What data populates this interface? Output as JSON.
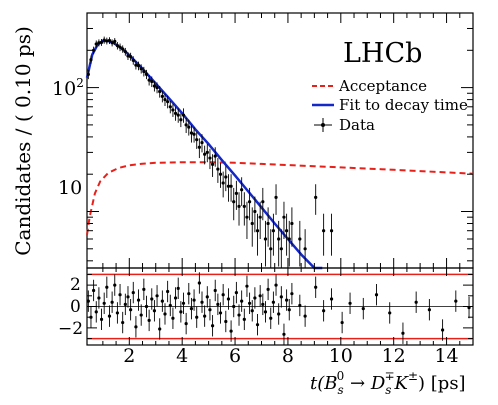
{
  "chart_data": {
    "type": "scatter",
    "experiment_label": "LHCb",
    "ylabel": "Candidates / ( 0.10 ps)",
    "xlabel": "t(B_s^0 → D_s^∓K^±) [ps]",
    "xlabel_parts": {
      "prefix": "t(",
      "B": "B",
      "B_sub": "s",
      "B_sup": "0",
      "arrow": " → ",
      "D": "D",
      "D_sub": "s",
      "D_sup": "∓",
      "K": "K",
      "K_sup": "±",
      "suffix": ") [ps]"
    },
    "xlim": [
      0.4,
      15
    ],
    "ylim_log": [
      3.5,
      400
    ],
    "y_scale": "log",
    "x_ticks": [
      "2",
      "4",
      "6",
      "8",
      "10",
      "12",
      "14"
    ],
    "y_ticks": [
      {
        "label_base": "10",
        "label_exp": "2",
        "value": 100
      },
      {
        "label_base": "10",
        "label_exp": "",
        "value": 10
      }
    ],
    "legend_position": "top-right",
    "legend": [
      {
        "label": "Acceptance",
        "style": "dashed",
        "color": "#e8201a"
      },
      {
        "label": "Fit to decay time",
        "style": "solid",
        "color": "#1428c8"
      },
      {
        "label": "Data",
        "style": "points",
        "color": "#000000"
      }
    ],
    "fit_curve": {
      "color": "#1428c8",
      "x": [
        0.4,
        0.6,
        0.8,
        1.0,
        1.2,
        1.4,
        1.7,
        2.0,
        2.5,
        3.0,
        3.5,
        4.0,
        4.5,
        5.0,
        5.5,
        6.0,
        6.5,
        7.0,
        7.5,
        8.0,
        8.5,
        9.0,
        9.3
      ],
      "y": [
        120,
        185,
        222,
        238,
        238,
        230,
        208,
        183,
        142,
        108,
        82,
        62,
        46,
        35,
        26,
        19.5,
        14.5,
        10.8,
        8.0,
        6.0,
        4.5,
        3.4,
        2.9
      ]
    },
    "acceptance_curve": {
      "color": "#e8201a",
      "x": [
        0.4,
        0.5,
        0.7,
        0.9,
        1.2,
        1.6,
        2.0,
        2.5,
        3.0,
        4.0,
        5.0,
        6.0,
        7.0,
        8.0,
        9.0,
        10.0,
        11.0,
        12.0,
        13.0,
        14.0,
        15.0
      ],
      "y": [
        6.5,
        9,
        14,
        17.5,
        20.5,
        22.5,
        23.6,
        24.3,
        24.7,
        25.0,
        25.0,
        24.7,
        24.2,
        23.7,
        23.2,
        22.7,
        22.2,
        21.7,
        21.2,
        20.7,
        20.2
      ]
    },
    "data_points": {
      "x": [
        0.45,
        0.55,
        0.65,
        0.75,
        0.85,
        0.95,
        1.05,
        1.15,
        1.25,
        1.35,
        1.45,
        1.55,
        1.65,
        1.75,
        1.85,
        1.95,
        2.05,
        2.15,
        2.25,
        2.35,
        2.45,
        2.55,
        2.65,
        2.75,
        2.85,
        2.95,
        3.05,
        3.15,
        3.25,
        3.35,
        3.45,
        3.55,
        3.65,
        3.75,
        3.85,
        3.95,
        4.05,
        4.15,
        4.25,
        4.35,
        4.45,
        4.55,
        4.65,
        4.75,
        4.85,
        4.95,
        5.05,
        5.15,
        5.25,
        5.35,
        5.45,
        5.55,
        5.65,
        5.75,
        5.85,
        5.95,
        6.05,
        6.15,
        6.25,
        6.35,
        6.45,
        6.55,
        6.65,
        6.75,
        6.85,
        6.95,
        7.05,
        7.15,
        7.25,
        7.35,
        7.45,
        7.55,
        7.65,
        7.75,
        7.85,
        7.95,
        8.05,
        8.15,
        8.45,
        8.65,
        9.05,
        9.35,
        9.65
      ],
      "y": [
        128,
        168,
        200,
        225,
        230,
        232,
        242,
        238,
        240,
        230,
        236,
        218,
        212,
        205,
        195,
        180,
        178,
        166,
        152,
        150,
        142,
        135,
        128,
        115,
        112,
        103,
        100,
        93,
        85,
        80,
        77,
        70,
        66,
        62,
        60,
        55,
        60,
        50,
        48,
        43,
        42,
        38,
        33,
        36,
        29,
        30,
        27,
        24,
        28,
        22,
        20,
        17,
        19,
        16,
        16,
        12,
        14,
        11,
        15,
        11,
        9,
        12,
        8,
        10,
        7,
        9,
        12,
        6,
        8,
        5,
        7,
        13,
        6,
        5,
        9,
        7,
        6,
        8,
        6,
        5,
        13,
        7,
        7
      ],
      "err": [
        11,
        13,
        14,
        15,
        15,
        15,
        16,
        15,
        15,
        15,
        15,
        15,
        15,
        14,
        14,
        13,
        13,
        13,
        12,
        12,
        12,
        12,
        11,
        11,
        11,
        10,
        10,
        10,
        9,
        9,
        9,
        8,
        8,
        8,
        8,
        7,
        8,
        7,
        7,
        7,
        6,
        6,
        6,
        6,
        5,
        5,
        5,
        5,
        5,
        5,
        4.5,
        4,
        4.4,
        4,
        4,
        3.5,
        3.7,
        3.3,
        3.9,
        3.3,
        3,
        3.5,
        2.8,
        3.2,
        2.6,
        3,
        3.5,
        2.4,
        2.8,
        2.2,
        2.6,
        3.6,
        2.4,
        2.2,
        3,
        2.6,
        2.4,
        2.8,
        2.4,
        2.2,
        3.6,
        2.6,
        2.6
      ]
    },
    "pull_panel": {
      "ylim": [
        -3.6,
        3.6
      ],
      "y_ticks": [
        "2",
        "0",
        "−2"
      ],
      "bands": [
        -3,
        3
      ],
      "band_color": "#e8201a",
      "x": [
        0.45,
        0.55,
        0.65,
        0.75,
        0.85,
        0.95,
        1.05,
        1.15,
        1.25,
        1.35,
        1.45,
        1.55,
        1.65,
        1.75,
        1.85,
        1.95,
        2.05,
        2.15,
        2.25,
        2.35,
        2.45,
        2.55,
        2.65,
        2.75,
        2.85,
        2.95,
        3.05,
        3.15,
        3.25,
        3.35,
        3.45,
        3.55,
        3.65,
        3.75,
        3.85,
        3.95,
        4.05,
        4.15,
        4.25,
        4.35,
        4.45,
        4.55,
        4.65,
        4.75,
        4.85,
        4.95,
        5.05,
        5.15,
        5.25,
        5.35,
        5.45,
        5.55,
        5.65,
        5.75,
        5.85,
        5.95,
        6.05,
        6.15,
        6.25,
        6.35,
        6.45,
        6.55,
        6.65,
        6.75,
        6.85,
        6.95,
        7.05,
        7.15,
        7.25,
        7.35,
        7.45,
        7.55,
        7.65,
        7.75,
        7.85,
        7.95,
        8.05,
        8.15,
        8.45,
        8.65,
        9.05,
        9.35,
        9.65,
        10.05,
        10.35,
        10.85,
        11.35,
        11.85,
        12.35,
        12.85,
        13.35,
        13.85,
        14.35,
        14.85
      ],
      "y": [
        0.5,
        -1.0,
        1.5,
        -0.5,
        0.8,
        -1.2,
        0.3,
        1.8,
        -0.9,
        0.4,
        2.0,
        -0.6,
        1.1,
        -1.5,
        0.2,
        0.9,
        -0.3,
        1.3,
        -1.9,
        0.6,
        -0.8,
        1.6,
        0.0,
        -1.3,
        0.7,
        -0.4,
        1.0,
        -2.1,
        0.5,
        -0.7,
        1.4,
        0.1,
        -1.1,
        0.8,
        1.7,
        -0.5,
        0.3,
        -1.6,
        1.2,
        -0.2,
        0.6,
        -1.0,
        2.2,
        0.4,
        -0.9,
        0.9,
        -0.3,
        -1.8,
        1.5,
        0.2,
        -0.6,
        1.1,
        -1.4,
        0.7,
        -2.3,
        0.0,
        1.3,
        -0.8,
        0.5,
        -1.2,
        1.9,
        0.3,
        -0.4,
        0.8,
        -1.7,
        1.0,
        0.2,
        -0.5,
        1.6,
        -1.1,
        0.4,
        2.0,
        -0.7,
        0.9,
        -2.6,
        0.6,
        -0.3,
        1.2,
        0.1,
        -0.9,
        1.8,
        -0.4,
        0.7,
        -1.5,
        0.3,
        -0.2,
        1.1,
        -0.6,
        -2.5,
        0.4,
        -0.3,
        -2.2,
        0.5,
        -0.1
      ],
      "err": [
        1,
        1,
        1,
        1,
        1,
        1,
        1,
        1,
        1,
        1,
        1,
        1,
        1,
        1,
        1,
        1,
        1,
        1,
        1,
        1,
        1,
        1,
        1,
        1,
        1,
        1,
        1,
        1,
        1,
        1,
        1,
        1,
        1,
        1,
        1,
        1,
        1,
        1,
        1,
        1,
        1,
        1,
        1,
        1,
        1,
        1,
        1,
        1,
        1,
        1,
        1,
        1,
        1,
        1,
        1,
        1,
        1,
        1,
        1,
        1,
        1,
        1,
        1,
        1,
        1,
        1,
        1,
        1,
        1,
        1,
        1,
        1,
        1,
        1,
        1,
        1,
        1,
        1,
        1,
        1,
        1,
        1,
        1,
        1,
        1,
        1,
        1,
        1,
        1,
        1,
        1,
        1,
        1,
        1
      ]
    }
  }
}
